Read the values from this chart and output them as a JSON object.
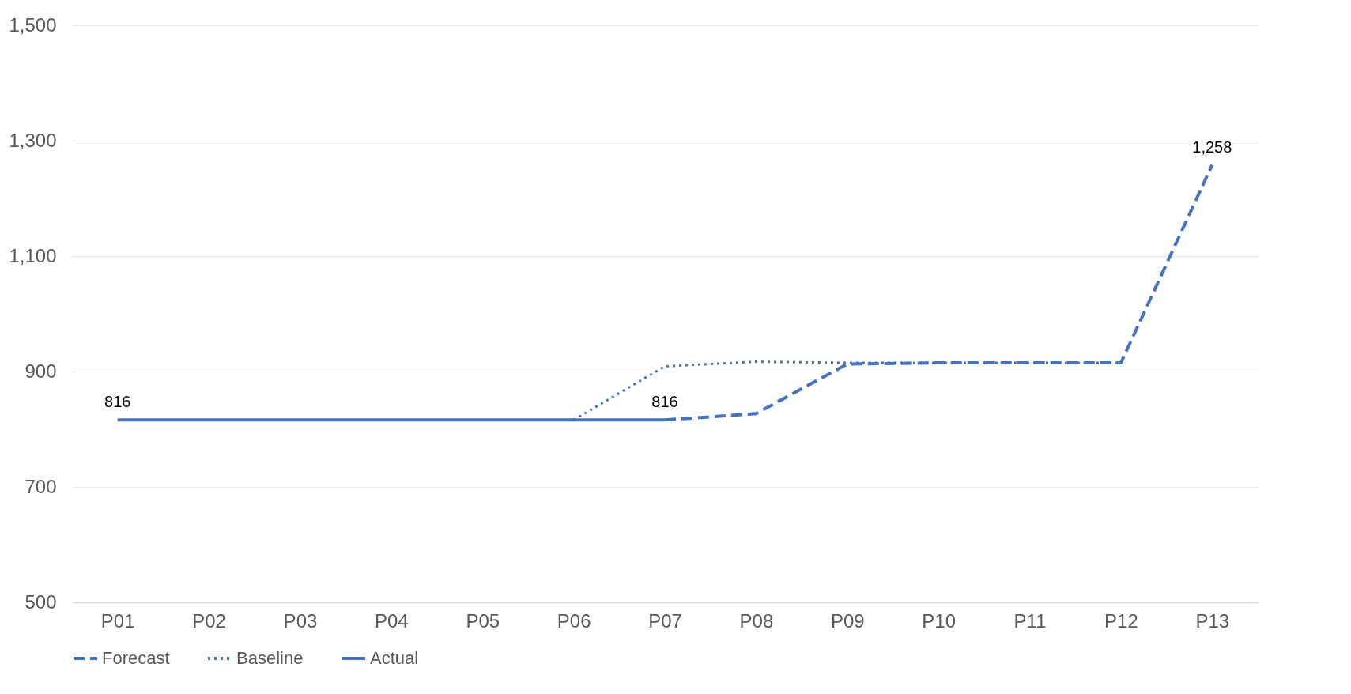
{
  "chart_data": {
    "type": "line",
    "categories": [
      "P01",
      "P02",
      "P03",
      "P04",
      "P05",
      "P06",
      "P07",
      "P08",
      "P09",
      "P10",
      "P11",
      "P12",
      "P13"
    ],
    "series": [
      {
        "name": "Forecast",
        "color": "#4472c4",
        "line_style": "dashed",
        "values": [
          null,
          null,
          null,
          null,
          null,
          null,
          816,
          827,
          913,
          915,
          915,
          915,
          1258
        ],
        "value_labels": [
          null,
          null,
          null,
          null,
          null,
          null,
          "816",
          null,
          null,
          null,
          null,
          null,
          "1,258"
        ]
      },
      {
        "name": "Baseline",
        "color": "#4472c4",
        "line_style": "dotted",
        "values": [
          null,
          null,
          null,
          null,
          null,
          816,
          909,
          917,
          915,
          915,
          915,
          915,
          null
        ]
      },
      {
        "name": "Actual",
        "color": "#4472c4",
        "line_style": "solid",
        "values": [
          816,
          816,
          816,
          816,
          816,
          816,
          816,
          null,
          null,
          null,
          null,
          null,
          null
        ],
        "value_labels": [
          "816",
          null,
          null,
          null,
          null,
          null,
          null,
          null,
          null,
          null,
          null,
          null,
          null
        ]
      }
    ],
    "ylim": [
      500,
      1500
    ],
    "yticks": [
      500,
      700,
      900,
      {
        "value": 1100,
        "label": "1,100"
      },
      {
        "value": 1300,
        "label": "1,300"
      },
      {
        "value": 1500,
        "label": "1,500"
      }
    ],
    "grid": "y",
    "legend": "bottom"
  }
}
